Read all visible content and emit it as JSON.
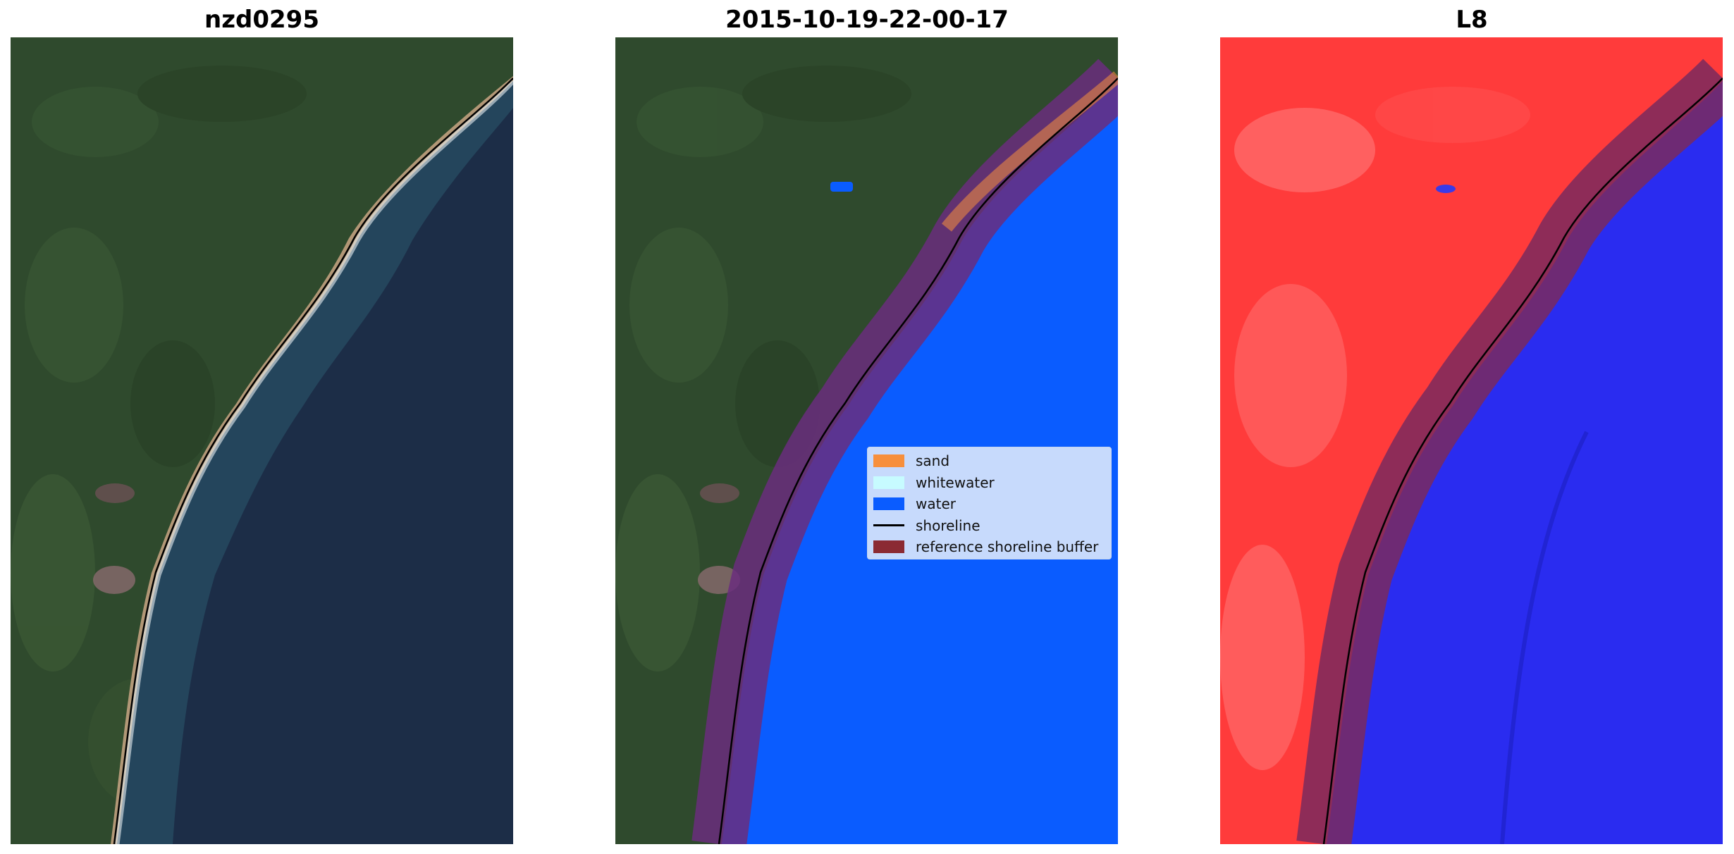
{
  "titles": {
    "left": "nzd0295",
    "middle": "2015-10-19-22-00-17",
    "right": "L8"
  },
  "legend": {
    "items": [
      {
        "label": "sand",
        "kind": "patch",
        "color": "#f78f3c"
      },
      {
        "label": "whitewater",
        "kind": "patch",
        "color": "#c7fbff"
      },
      {
        "label": "water",
        "kind": "patch",
        "color": "#0a5cff"
      },
      {
        "label": "shoreline",
        "kind": "line",
        "color": "#000000"
      },
      {
        "label": "reference shoreline buffer",
        "kind": "patch",
        "color": "#8b2a33"
      }
    ]
  },
  "colors": {
    "land": "#2e4a2c",
    "sea": "#1c2c47",
    "water_class": "#0a5cff",
    "buffer": "#7a1f5e",
    "index_land": "#ff3b3b",
    "index_water": "#2a2cf0"
  }
}
